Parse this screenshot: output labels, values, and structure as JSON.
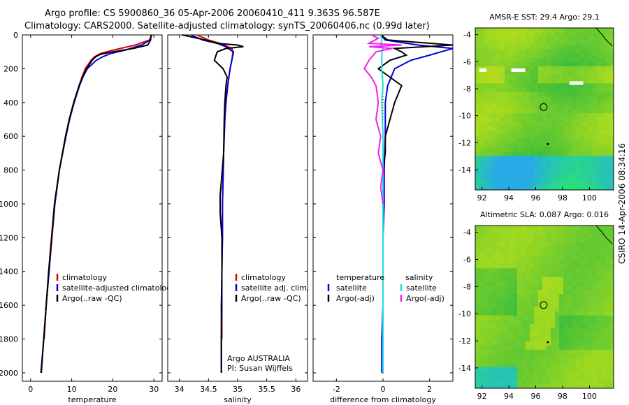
{
  "title": {
    "line1": "Argo profile: CS 5900860_36 05-Apr-2006 20060410_411 9.363S 96.587E",
    "line2": "Climatology: CARS2000. Satellite-adjusted climatology: synTS_20060406.nc (0.99d later)"
  },
  "side_text": "CSIRO 14-Apr-2006 08:34:16",
  "colors": {
    "climatology": "#e00000",
    "satellite": "#0000dd",
    "argo": "#000000",
    "sal_sat": "#22dddd",
    "sal_argo": "#ee22ee"
  },
  "chart_data": [
    {
      "type": "line",
      "name": "temperature",
      "xlabel": "temperature",
      "ylabel": "",
      "xlim": [
        -2,
        32
      ],
      "ylim": [
        2050,
        0
      ],
      "xticks": [
        0,
        10,
        20,
        30
      ],
      "yticks": [
        0,
        200,
        400,
        600,
        800,
        1000,
        1200,
        1400,
        1600,
        1800,
        2000
      ],
      "legend": [
        "climatology",
        "satellite-adjusted climatology",
        "Argo(..raw -QC)"
      ],
      "series": [
        {
          "name": "climatology",
          "depth": [
            0,
            30,
            60,
            90,
            110,
            130,
            150,
            200,
            250,
            300,
            400,
            500,
            600,
            800,
            1000,
            1200,
            1400,
            1600,
            1800
          ],
          "values": [
            29.5,
            28.9,
            25.5,
            20.0,
            17.0,
            15.5,
            14.7,
            13.3,
            12.5,
            11.8,
            10.5,
            9.4,
            8.5,
            7.0,
            5.9,
            5.2,
            4.5,
            3.8,
            3.3
          ]
        },
        {
          "name": "satellite-adjusted climatology",
          "depth": [
            0,
            30,
            60,
            90,
            110,
            130,
            150,
            200,
            250,
            300,
            400,
            500,
            600,
            800,
            1000,
            1200,
            1400,
            1600,
            1800,
            2000
          ],
          "values": [
            29.4,
            29.0,
            27.0,
            23.0,
            19.5,
            17.5,
            16.0,
            13.8,
            12.7,
            11.9,
            10.6,
            9.5,
            8.6,
            7.0,
            5.9,
            5.1,
            4.5,
            3.8,
            3.2,
            2.5
          ]
        },
        {
          "name": "Argo(..raw -QC)",
          "depth": [
            0,
            30,
            60,
            80,
            100,
            115,
            130,
            150,
            200,
            250,
            300,
            400,
            500,
            600,
            800,
            1000,
            1200,
            1400,
            1600,
            1800,
            2000
          ],
          "values": [
            29.3,
            29.2,
            28.5,
            25.0,
            20.0,
            17.0,
            15.8,
            15.0,
            13.6,
            12.6,
            11.8,
            10.5,
            9.4,
            8.5,
            7.0,
            5.8,
            5.1,
            4.4,
            3.8,
            3.2,
            2.6
          ]
        }
      ]
    },
    {
      "type": "line",
      "name": "salinity",
      "xlabel": "salinity",
      "ylabel": "",
      "xlim": [
        33.8,
        36.2
      ],
      "ylim": [
        2050,
        0
      ],
      "xticks": [
        34,
        34.5,
        35,
        35.5,
        36
      ],
      "legend": [
        "climatology",
        "satellite adj. clim.",
        "Argo(..raw -QC)"
      ],
      "annotations": [
        "Argo AUSTRALIA",
        "PI: Susan Wijffels"
      ],
      "series": [
        {
          "name": "climatology",
          "depth": [
            0,
            30,
            50,
            80,
            100,
            150,
            200,
            300,
            400,
            500,
            700,
            1000,
            1200,
            1400,
            1600,
            1800
          ],
          "values": [
            34.3,
            34.5,
            34.7,
            34.9,
            34.92,
            34.9,
            34.87,
            34.83,
            34.8,
            34.78,
            34.76,
            34.74,
            34.74,
            34.73,
            34.73,
            34.73
          ]
        },
        {
          "name": "satellite adj. clim.",
          "depth": [
            0,
            30,
            50,
            70,
            90,
            100,
            150,
            200,
            300,
            400,
            500,
            700,
            1000,
            1200,
            1400,
            1600,
            1800,
            2000
          ],
          "values": [
            34.2,
            34.4,
            34.65,
            34.8,
            34.88,
            34.93,
            34.9,
            34.87,
            34.83,
            34.8,
            34.78,
            34.76,
            34.74,
            34.74,
            34.73,
            34.73,
            34.72,
            34.72
          ]
        },
        {
          "name": "Argo(..raw -QC)",
          "depth": [
            0,
            30,
            50,
            60,
            70,
            80,
            100,
            150,
            200,
            250,
            300,
            400,
            500,
            700,
            950,
            1000,
            1050,
            1200,
            1400,
            1600,
            1800,
            2000
          ],
          "values": [
            34.05,
            34.45,
            34.65,
            35.0,
            35.1,
            34.8,
            34.65,
            34.6,
            34.75,
            34.82,
            34.8,
            34.78,
            34.77,
            34.76,
            34.7,
            34.7,
            34.7,
            34.73,
            34.73,
            34.72,
            34.72,
            34.72
          ]
        }
      ]
    },
    {
      "type": "line",
      "name": "difference",
      "xlabel": "difference from climatology",
      "ylabel": "",
      "xlim": [
        -3,
        3
      ],
      "ylim": [
        2050,
        0
      ],
      "xticks": [
        -2,
        0,
        2
      ],
      "legend": [
        "temperature",
        "satellite",
        "Argo(-adj)",
        "salinity",
        "satellite",
        "Argo(-adj)"
      ],
      "series": [
        {
          "name": "temperature satellite",
          "depth": [
            0,
            30,
            60,
            80,
            100,
            120,
            150,
            200,
            300,
            400,
            500,
            600,
            800,
            1000,
            1200,
            1400,
            1600,
            1800,
            2000
          ],
          "values": [
            -0.1,
            0.1,
            1.5,
            3.0,
            2.5,
            2.0,
            1.2,
            0.5,
            0.2,
            0.1,
            0.1,
            0.1,
            0.05,
            0.05,
            0.0,
            0.0,
            0.0,
            -0.05,
            -0.05
          ]
        },
        {
          "name": "temperature Argo(-adj)",
          "depth": [
            0,
            30,
            60,
            80,
            100,
            120,
            150,
            200,
            250,
            300,
            400,
            500,
            600,
            700,
            800,
            1000,
            1200,
            1400,
            1600,
            1800,
            2000
          ],
          "values": [
            -0.1,
            0.2,
            3.0,
            0.5,
            0.8,
            1.0,
            0.3,
            -0.2,
            0.3,
            0.8,
            0.5,
            0.3,
            0.1,
            0.1,
            0.0,
            0.0,
            0.0,
            0.0,
            0.0,
            0.0,
            0.0
          ]
        },
        {
          "name": "salinity satellite",
          "depth": [
            0,
            30,
            60,
            80,
            100,
            200,
            300,
            400,
            600,
            800,
            1000,
            1200,
            1400,
            1600,
            1800,
            2000
          ],
          "values": [
            -0.1,
            -0.05,
            -0.1,
            0.0,
            -0.05,
            -0.05,
            0.0,
            -0.05,
            0.0,
            0.0,
            0.0,
            0.0,
            0.0,
            0.0,
            0.0,
            0.0
          ]
        },
        {
          "name": "salinity Argo(-adj)",
          "depth": [
            0,
            20,
            50,
            60,
            70,
            80,
            100,
            150,
            200,
            250,
            300,
            400,
            500,
            600,
            700,
            800,
            900,
            1000
          ],
          "values": [
            -0.5,
            -0.2,
            -0.6,
            0.8,
            -0.6,
            0.4,
            -0.3,
            -0.6,
            -0.8,
            -0.5,
            -0.3,
            -0.2,
            -0.3,
            -0.1,
            -0.2,
            0.0,
            -0.1,
            0.0
          ]
        }
      ]
    },
    {
      "type": "heatmap",
      "name": "sst_map",
      "title": "AMSR-E SST: 29.4 Argo: 29.1",
      "xlim": [
        91.5,
        101.8
      ],
      "ylim": [
        -15.5,
        -3.5
      ],
      "xticks": [
        92,
        94,
        96,
        98,
        100
      ],
      "yticks": [
        -4,
        -6,
        -8,
        -10,
        -12,
        -14
      ],
      "argo_position": [
        96.587,
        -9.363
      ]
    },
    {
      "type": "heatmap",
      "name": "sla_map",
      "title": "Altimetric SLA: 0.087 Argo: 0.016",
      "xlim": [
        91.5,
        101.8
      ],
      "ylim": [
        -15.5,
        -3.5
      ],
      "xticks": [
        92,
        94,
        96,
        98,
        100
      ],
      "yticks": [
        -4,
        -6,
        -8,
        -10,
        -12,
        -14
      ],
      "argo_position": [
        96.587,
        -9.363
      ]
    }
  ]
}
